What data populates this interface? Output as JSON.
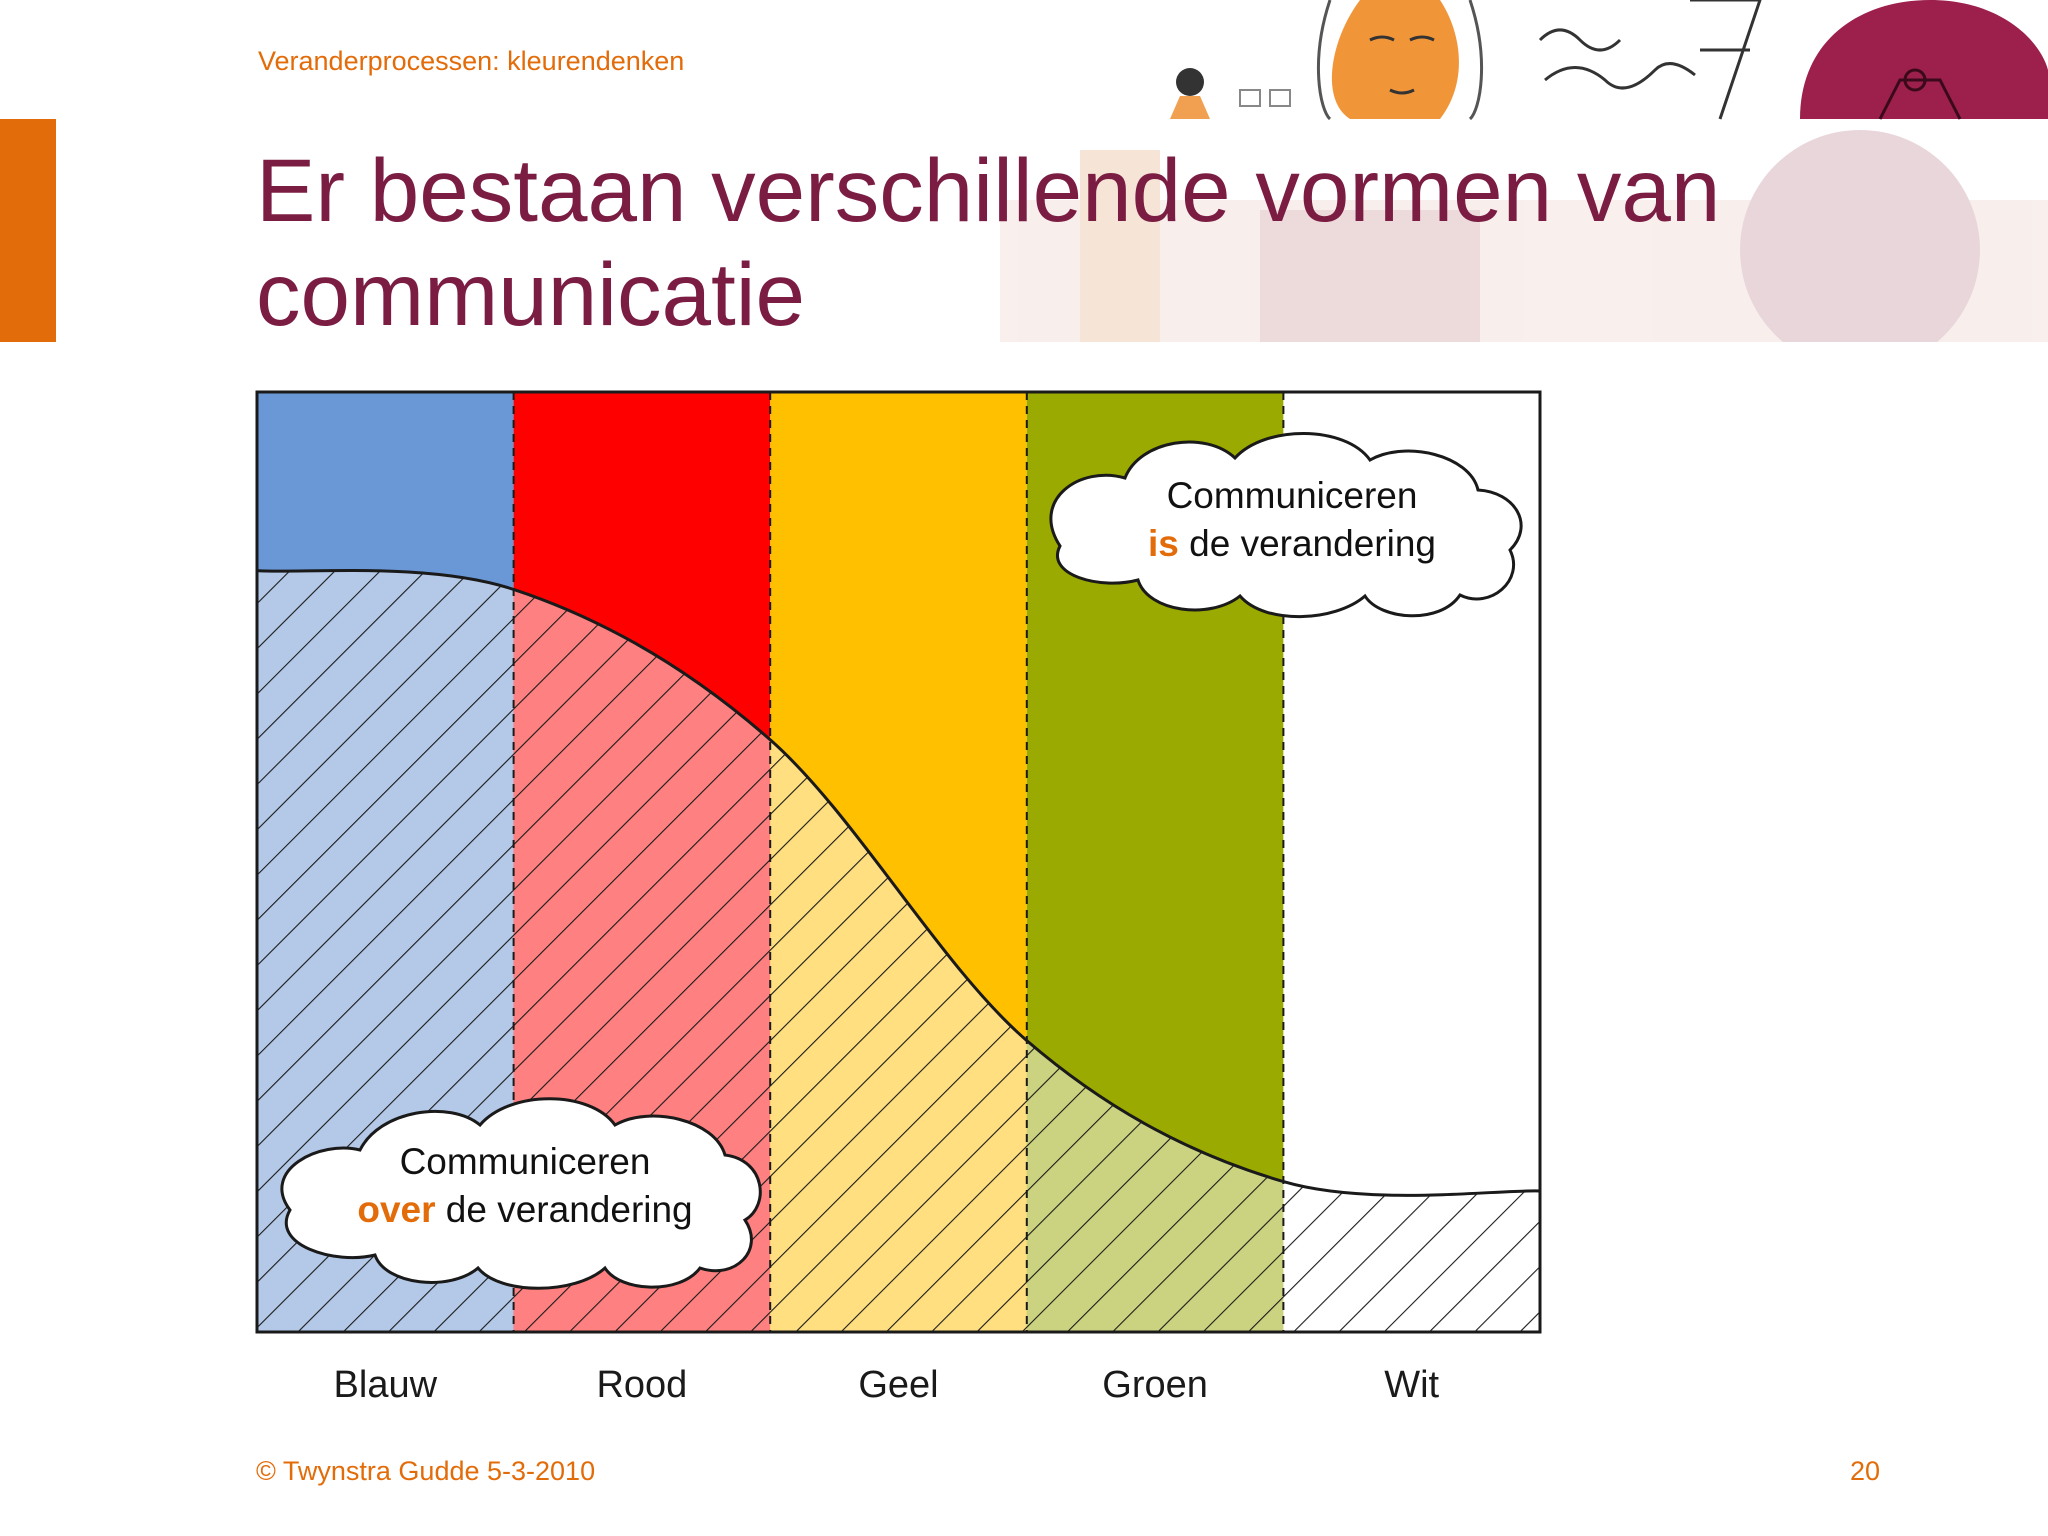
{
  "header": {
    "subtitle": "Veranderprocessen: kleurendenken",
    "title": "Er bestaan verschillende vormen van communicatie"
  },
  "colors": {
    "accent": "#e36c0a",
    "title": "#7b1c43",
    "band_blauw": "#6a98d6",
    "band_rood": "#ff0000",
    "band_geel": "#ffc000",
    "band_groen": "#9aaa00",
    "band_wit": "#ffffff",
    "hatch_blauw": "#b4c9e8",
    "hatch_rood": "#ff8080",
    "hatch_geel": "#ffdf80",
    "hatch_groen": "#ccd380",
    "hatch_wit": "#ffffff"
  },
  "categories": [
    "Blauw",
    "Rood",
    "Geel",
    "Groen",
    "Wit"
  ],
  "curve_levels": [
    0.81,
    0.79,
    0.63,
    0.31,
    0.16,
    0.15
  ],
  "clouds": {
    "top": {
      "line1": "Communiceren",
      "em": "is",
      "rest": " de verandering"
    },
    "bottom": {
      "line1": "Communiceren",
      "em": "over",
      "rest": " de verandering"
    }
  },
  "footer": {
    "copyright": "© Twynstra Gudde  5-3-2010",
    "page_number": "20"
  }
}
